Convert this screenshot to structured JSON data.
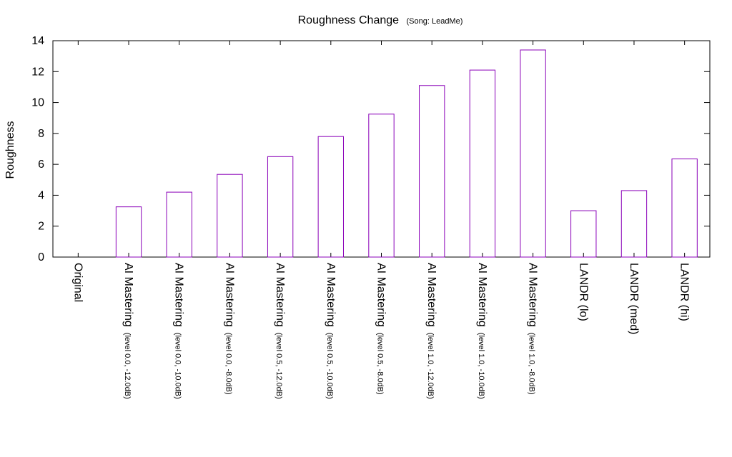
{
  "chart_data": {
    "type": "bar",
    "title": "Roughness Change",
    "subtitle": "(Song: LeadMe)",
    "ylabel": "Roughness",
    "xlabel": "",
    "ylim": [
      0,
      14
    ],
    "yticks": [
      0,
      2,
      4,
      6,
      8,
      10,
      12,
      14
    ],
    "grid": false,
    "legend": "none",
    "bar_color": "#8a00b8",
    "categories": [
      {
        "label": "Original",
        "sublabel": ""
      },
      {
        "label": "AI Mastering",
        "sublabel": "(level 0.0, -12.0dB)"
      },
      {
        "label": "AI Mastering",
        "sublabel": "(level 0.0, -10.0dB)"
      },
      {
        "label": "AI Mastering",
        "sublabel": "(level 0.0, -8.0dB)"
      },
      {
        "label": "AI Mastering",
        "sublabel": "(level 0.5, -12.0dB)"
      },
      {
        "label": "AI Mastering",
        "sublabel": "(level 0.5, -10.0dB)"
      },
      {
        "label": "AI Mastering",
        "sublabel": "(level 0.5, -8.0dB)"
      },
      {
        "label": "AI Mastering",
        "sublabel": "(level 1.0, -12.0dB)"
      },
      {
        "label": "AI Mastering",
        "sublabel": "(level 1.0, -10.0dB)"
      },
      {
        "label": "AI Mastering",
        "sublabel": "(level 1.0, -8.0dB)"
      },
      {
        "label": "LANDR (lo)",
        "sublabel": ""
      },
      {
        "label": "LANDR (med)",
        "sublabel": ""
      },
      {
        "label": "LANDR (hi)",
        "sublabel": ""
      }
    ],
    "values": [
      0,
      3.25,
      4.2,
      5.35,
      6.5,
      7.8,
      9.25,
      11.1,
      12.1,
      13.4,
      3.0,
      4.3,
      6.35
    ]
  }
}
